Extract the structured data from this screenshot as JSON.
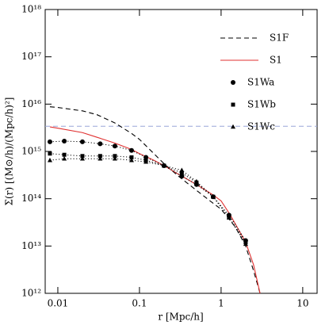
{
  "chart_data": {
    "type": "line",
    "x_label": "r [Mpc/h]",
    "y_label": "Σ(r)  [(M⊙/h)/(Mpc/h)²]",
    "log_x": true,
    "log_y": true,
    "xlim": [
      0.007,
      15
    ],
    "ylim": [
      1000000000000.0,
      1e+18
    ],
    "xticks": [
      0.01,
      0.1,
      1,
      10
    ],
    "yticks": [
      {
        "value": 1000000000000.0,
        "label": "10¹²"
      },
      {
        "value": 10000000000000.0,
        "label": "10¹³"
      },
      {
        "value": 100000000000000.0,
        "label": "10¹⁴"
      },
      {
        "value": 1000000000000000.0,
        "label": "10¹⁵"
      },
      {
        "value": 1e+16,
        "label": "10¹⁶"
      },
      {
        "value": 1e+17,
        "label": "10¹⁷"
      },
      {
        "value": 1e+18,
        "label": "10¹⁸"
      }
    ],
    "legend": "upper right",
    "reference_line": {
      "y": 3400000000000000.0,
      "color": "#9aa6d8"
    },
    "series": [
      {
        "name": "S1F",
        "color": "#000000",
        "style": "dashed",
        "marker": null,
        "x": [
          0.008,
          0.01,
          0.02,
          0.03,
          0.05,
          0.08,
          0.1,
          0.15,
          0.2,
          0.3,
          0.5,
          0.8,
          1,
          1.5,
          2,
          2.5,
          3
        ],
        "values": [
          8800000000000000.0,
          8500000000000000.0,
          7200000000000000.0,
          6000000000000000.0,
          4000000000000000.0,
          2400000000000000.0,
          1800000000000000.0,
          900000000000000.0,
          550000000000000.0,
          300000000000000.0,
          150000000000000.0,
          80000000000000.0,
          60000000000000.0,
          25000000000000.0,
          10000000000000.0,
          3000000000000.0,
          1000000000000.0
        ]
      },
      {
        "name": "S1",
        "color": "#e03030",
        "style": "solid",
        "marker": null,
        "x": [
          0.008,
          0.01,
          0.02,
          0.03,
          0.05,
          0.08,
          0.1,
          0.15,
          0.2,
          0.3,
          0.5,
          0.8,
          1,
          1.3,
          2,
          2.5,
          3
        ],
        "values": [
          3300000000000000.0,
          3100000000000000.0,
          2500000000000000.0,
          2000000000000000.0,
          1500000000000000.0,
          1100000000000000.0,
          900000000000000.0,
          650000000000000.0,
          500000000000000.0,
          330000000000000.0,
          200000000000000.0,
          120000000000000.0,
          90000000000000.0,
          45000000000000.0,
          12000000000000.0,
          4000000000000.0,
          1000000000000.0
        ]
      },
      {
        "name": "S1Wa",
        "color": "#000000",
        "style": "dotted",
        "marker": "circle",
        "x": [
          0.008,
          0.012,
          0.02,
          0.033,
          0.05,
          0.08,
          0.12,
          0.2,
          0.33,
          0.5,
          0.8,
          1.25,
          2
        ],
        "values": [
          1600000000000000.0,
          1650000000000000.0,
          1600000000000000.0,
          1450000000000000.0,
          1300000000000000.0,
          1050000000000000.0,
          750000000000000.0,
          500000000000000.0,
          300000000000000.0,
          200000000000000.0,
          110000000000000.0,
          45000000000000.0,
          13000000000000.0
        ]
      },
      {
        "name": "S1Wb",
        "color": "#000000",
        "style": "dotted",
        "marker": "square",
        "x": [
          0.008,
          0.012,
          0.02,
          0.033,
          0.05,
          0.08,
          0.12,
          0.2,
          0.33,
          0.5,
          0.8,
          1.25,
          2
        ],
        "values": [
          900000000000000.0,
          850000000000000.0,
          800000000000000.0,
          800000000000000.0,
          800000000000000.0,
          750000000000000.0,
          650000000000000.0,
          500000000000000.0,
          350000000000000.0,
          220000000000000.0,
          110000000000000.0,
          40000000000000.0,
          12000000000000.0
        ]
      },
      {
        "name": "S1Wc",
        "color": "#000000",
        "style": "dotted",
        "marker": "triangle",
        "x": [
          0.008,
          0.012,
          0.02,
          0.033,
          0.05,
          0.08,
          0.12,
          0.2,
          0.33,
          0.5,
          0.8,
          1.25,
          2
        ],
        "values": [
          650000000000000.0,
          700000000000000.0,
          700000000000000.0,
          700000000000000.0,
          700000000000000.0,
          650000000000000.0,
          600000000000000.0,
          500000000000000.0,
          400000000000000.0,
          230000000000000.0,
          110000000000000.0,
          40000000000000.0,
          11000000000000.0
        ]
      }
    ]
  }
}
